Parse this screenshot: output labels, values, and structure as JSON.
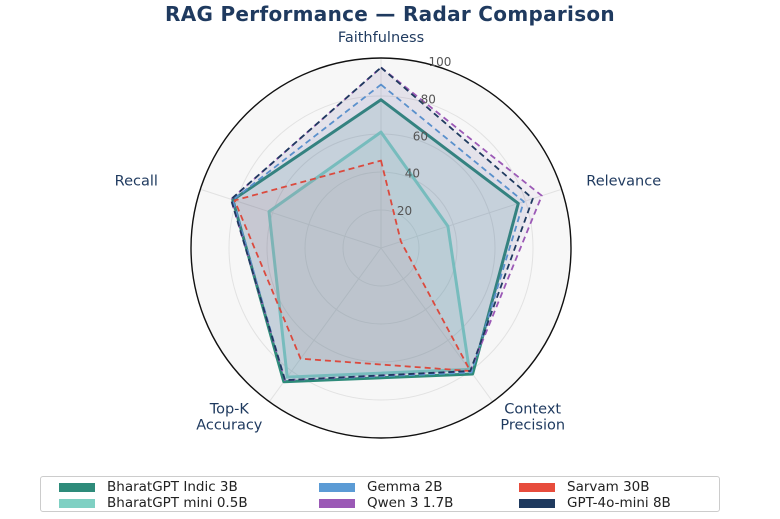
{
  "chart_data": {
    "type": "radar",
    "title": "RAG Performance — Radar Comparison",
    "axes": [
      "Faithfulness",
      "Relevance",
      "Context\nPrecision",
      "Top-K\nAccuracy",
      "Recall"
    ],
    "rlim": [
      0,
      100
    ],
    "r_ticks": [
      20,
      40,
      60,
      80,
      100
    ],
    "grid": true,
    "legend_position": "bottom",
    "series": [
      {
        "name": "BharatGPT Indic 3B",
        "values": [
          78,
          76,
          82,
          87,
          82
        ],
        "color": "#2e8b7a",
        "style": "solid"
      },
      {
        "name": "BharatGPT mini 0.5B",
        "values": [
          61,
          37,
          79,
          84,
          62
        ],
        "color": "#7fd0c3",
        "style": "solid"
      },
      {
        "name": "Gemma 2B",
        "values": [
          86,
          79,
          81,
          86,
          82
        ],
        "color": "#5b9bd5",
        "style": "dashed"
      },
      {
        "name": "Qwen 3 1.7B",
        "values": [
          95,
          89,
          80,
          86,
          83
        ],
        "color": "#9b59b6",
        "style": "dashed"
      },
      {
        "name": "Sarvam 30B",
        "values": [
          46,
          11,
          80,
          72,
          81
        ],
        "color": "#e74c3c",
        "style": "dashed"
      },
      {
        "name": "GPT-4o-mini 8B",
        "values": [
          95,
          84,
          80,
          86,
          83
        ],
        "color": "#1f3a5f",
        "style": "dashed"
      }
    ]
  }
}
